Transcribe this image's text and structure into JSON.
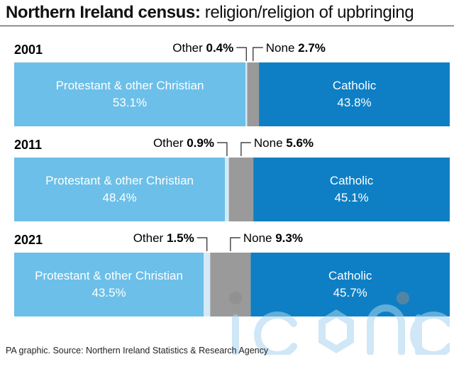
{
  "title": {
    "bold": "Northern Ireland census:",
    "regular": " religion/religion of upbringing"
  },
  "footer": "PA graphic. Source: Northern Ireland Statistics & Research Agency",
  "watermark": "iconic",
  "colors": {
    "protestant": "#6cbfe8",
    "other": "#d4eaf7",
    "none": "#9a9a9a",
    "catholic": "#0e7fc4"
  },
  "chart_data": {
    "type": "bar",
    "orientation": "horizontal-stacked-100",
    "series_order": [
      "protestant",
      "other",
      "none",
      "catholic"
    ],
    "rows": [
      {
        "year": "2001",
        "segments": [
          {
            "key": "protestant",
            "label": "Protestant & other Christian",
            "value": 53.1,
            "value_text": "53.1%"
          },
          {
            "key": "other",
            "label": "Other",
            "value": 0.4,
            "value_text": "0.4%"
          },
          {
            "key": "none",
            "label": "None",
            "value": 2.7,
            "value_text": "2.7%"
          },
          {
            "key": "catholic",
            "label": "Catholic",
            "value": 43.8,
            "value_text": "43.8%"
          }
        ]
      },
      {
        "year": "2011",
        "segments": [
          {
            "key": "protestant",
            "label": "Protestant & other Christian",
            "value": 48.4,
            "value_text": "48.4%"
          },
          {
            "key": "other",
            "label": "Other",
            "value": 0.9,
            "value_text": "0.9%"
          },
          {
            "key": "none",
            "label": "None",
            "value": 5.6,
            "value_text": "5.6%"
          },
          {
            "key": "catholic",
            "label": "Catholic",
            "value": 45.1,
            "value_text": "45.1%"
          }
        ]
      },
      {
        "year": "2021",
        "segments": [
          {
            "key": "protestant",
            "label": "Protestant & other Christian",
            "value": 43.5,
            "value_text": "43.5%"
          },
          {
            "key": "other",
            "label": "Other",
            "value": 1.5,
            "value_text": "1.5%"
          },
          {
            "key": "none",
            "label": "None",
            "value": 9.3,
            "value_text": "9.3%"
          },
          {
            "key": "catholic",
            "label": "Catholic",
            "value": 45.7,
            "value_text": "45.7%"
          }
        ]
      }
    ]
  }
}
